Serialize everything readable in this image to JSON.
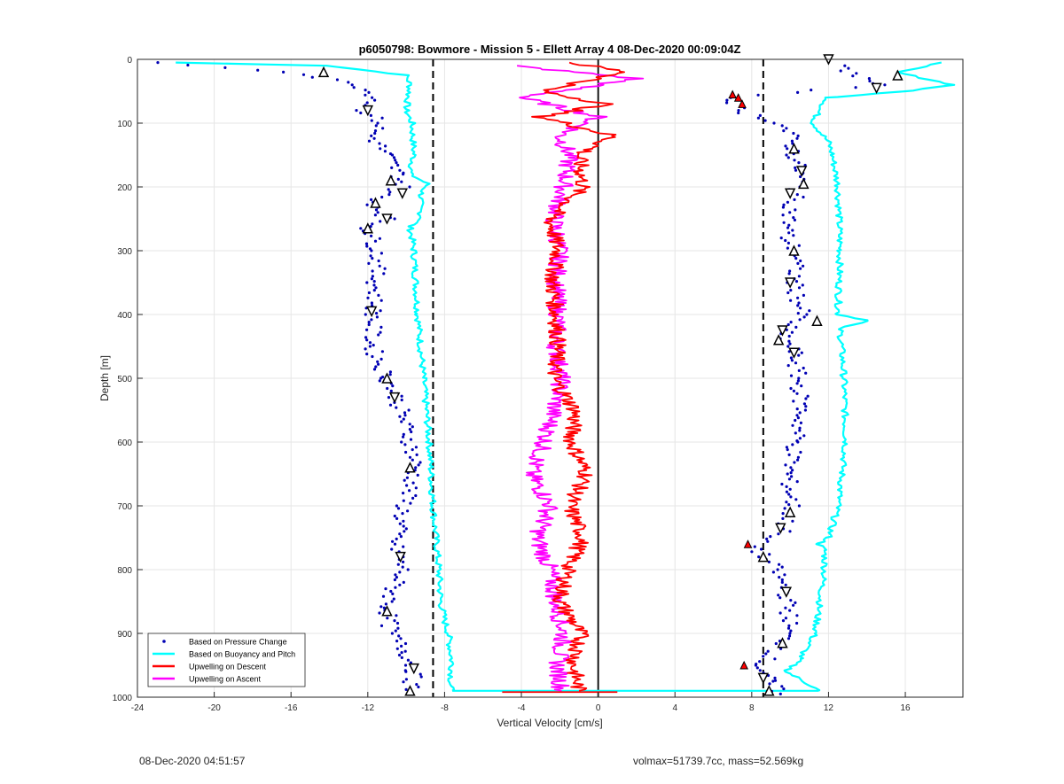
{
  "chart_data": {
    "type": "scatter",
    "title": "p6050798: Bowmore - Mission 5 - Ellett Array 4 08-Dec-2020 00:09:04Z",
    "xlabel": "Vertical Velocity [cm/s]",
    "ylabel": "Depth [m]",
    "xlim": [
      -24,
      19
    ],
    "ylim": [
      0,
      1000
    ],
    "y_reversed": true,
    "grid": true,
    "xticks": [
      -24,
      -20,
      -16,
      -12,
      -8,
      -4,
      0,
      4,
      8,
      12,
      16
    ],
    "yticks": [
      0,
      100,
      200,
      300,
      400,
      500,
      600,
      700,
      800,
      900,
      1000
    ],
    "legend_position": "bottom-left",
    "reference_lines": {
      "dashed": [
        -8.6,
        8.6
      ],
      "solid": [
        0
      ]
    },
    "series": [
      {
        "name": "Based on Pressure Change",
        "color": "#0000b4",
        "style": "dots",
        "descent": {
          "depth": [
            5,
            20,
            40,
            60,
            80,
            100,
            120,
            150,
            180,
            200,
            220,
            250,
            265,
            300,
            350,
            400,
            450,
            500,
            530,
            560,
            600,
            640,
            680,
            720,
            760,
            800,
            830,
            860,
            900,
            930,
            960,
            990
          ],
          "velocity": [
            -23,
            -16,
            -12.5,
            -11.5,
            -12.2,
            -11.3,
            -11.8,
            -11,
            -10.4,
            -10.2,
            -11.8,
            -11,
            -12,
            -11.5,
            -11.6,
            -11.7,
            -11.8,
            -11,
            -10.5,
            -10.2,
            -9.8,
            -9.5,
            -9.9,
            -10.3,
            -10.6,
            -10.2,
            -10.7,
            -11,
            -10.8,
            -10,
            -9.6,
            -9.8
          ]
        },
        "ascent": {
          "depth": [
            10,
            40,
            60,
            80,
            100,
            120,
            150,
            180,
            200,
            240,
            280,
            300,
            350,
            400,
            430,
            460,
            500,
            550,
            600,
            650,
            700,
            740,
            760,
            780,
            800,
            840,
            880,
            920,
            950,
            975,
            995
          ],
          "velocity": [
            12.5,
            14.5,
            7,
            7.3,
            9.5,
            10,
            10.2,
            10.5,
            10.4,
            10,
            9.8,
            10.3,
            10.2,
            10.6,
            9.6,
            10.2,
            10.4,
            10.6,
            10.3,
            9.9,
            10.1,
            9.6,
            8.1,
            8.6,
            9.3,
            9.8,
            10,
            9.6,
            8.4,
            8.9,
            9.5
          ]
        }
      },
      {
        "name": "Based on Buoyancy and Pitch",
        "color": "#00ffff",
        "style": "line",
        "descent": {
          "depth": [
            5,
            10,
            25,
            40,
            60,
            80,
            100,
            150,
            180,
            195,
            210,
            230,
            250,
            262,
            300,
            400,
            500,
            600,
            700,
            800,
            850,
            880,
            900,
            950,
            985,
            990
          ],
          "velocity": [
            -22,
            -14,
            -10,
            -9.8,
            -9.9,
            -10,
            -9.7,
            -9.6,
            -9.8,
            -8.9,
            -9.2,
            -9.3,
            -9.2,
            -9.8,
            -9.6,
            -9.4,
            -9.1,
            -8.8,
            -8.6,
            -8.3,
            -8.2,
            -8,
            -7.8,
            -7.6,
            -7.7,
            -7.6
          ]
        },
        "ascent": {
          "depth": [
            5,
            20,
            40,
            50,
            60,
            80,
            100,
            130,
            150,
            200,
            300,
            400,
            410,
            420,
            500,
            600,
            700,
            750,
            760,
            770,
            800,
            900,
            940,
            960,
            980,
            990
          ],
          "velocity": [
            18,
            15.5,
            18.5,
            16,
            12,
            11.5,
            11.2,
            12,
            12.2,
            12.5,
            12.6,
            12.5,
            14.2,
            12.6,
            12.8,
            12.9,
            12.5,
            12,
            11.5,
            11.8,
            11.8,
            11.3,
            10.5,
            9.8,
            11,
            11.5
          ]
        }
      },
      {
        "name": "Upwelling on Descent",
        "color": "#ff0000",
        "style": "line",
        "depth": [
          5,
          20,
          50,
          70,
          90,
          120,
          150,
          200,
          250,
          300,
          350,
          400,
          450,
          500,
          550,
          600,
          650,
          700,
          750,
          800,
          850,
          900,
          950,
          990
        ],
        "velocity": [
          -1.5,
          1.5,
          -3,
          0.5,
          -3,
          0.8,
          -1,
          -0.8,
          -2.5,
          -2.1,
          -2.4,
          -2.2,
          -2.1,
          -2.3,
          -1.2,
          -1.4,
          -0.6,
          -1.5,
          -0.8,
          -1.6,
          -2.0,
          -0.9,
          -1.3,
          -1.0
        ]
      },
      {
        "name": "Upwelling on Ascent",
        "color": "#ff00ff",
        "style": "line",
        "depth": [
          10,
          30,
          60,
          90,
          120,
          150,
          200,
          250,
          300,
          350,
          400,
          450,
          500,
          550,
          600,
          650,
          700,
          750,
          800,
          850,
          900,
          950,
          990
        ],
        "velocity": [
          -4.5,
          2,
          -4,
          0,
          -2,
          -1.5,
          -1.8,
          -2.3,
          -2.0,
          -2.2,
          -2.1,
          -2.2,
          -1.9,
          -2.3,
          -2.8,
          -3.5,
          -2.5,
          -3.2,
          -2.5,
          -2.2,
          -1.8,
          -2.1,
          -1.9
        ]
      }
    ]
  },
  "footer": {
    "timestamp": "08-Dec-2020 04:51:57",
    "stats": "volmax=51739.7cc, mass=52.569kg"
  }
}
